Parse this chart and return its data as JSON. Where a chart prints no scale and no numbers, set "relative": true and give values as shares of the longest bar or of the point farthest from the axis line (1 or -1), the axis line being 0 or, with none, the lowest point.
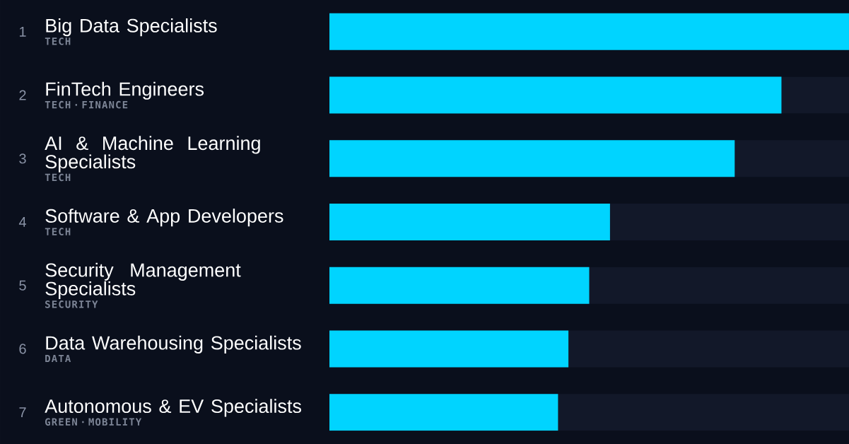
{
  "chart_data": {
    "type": "bar",
    "orientation": "horizontal",
    "relative": true,
    "color": "#00d4ff",
    "categories": [
      "Big Data Specialists",
      "FinTech Engineers",
      "AI & Machine Learning Specialists",
      "Software & App Developers",
      "Security Management Specialists",
      "Data Warehousing Specialists",
      "Autonomous & EV Specialists"
    ],
    "values": [
      1,
      0.87,
      0.78,
      0.54,
      0.5,
      0.46,
      0.44
    ],
    "annotations": [
      "1",
      "2",
      "3",
      "4",
      "5",
      "6",
      "7",
      "TECH",
      "TECH · FINANCE",
      "TECH",
      "TECH",
      "SECURITY",
      "DATA",
      "GREEN · MOBILITY"
    ]
  }
}
